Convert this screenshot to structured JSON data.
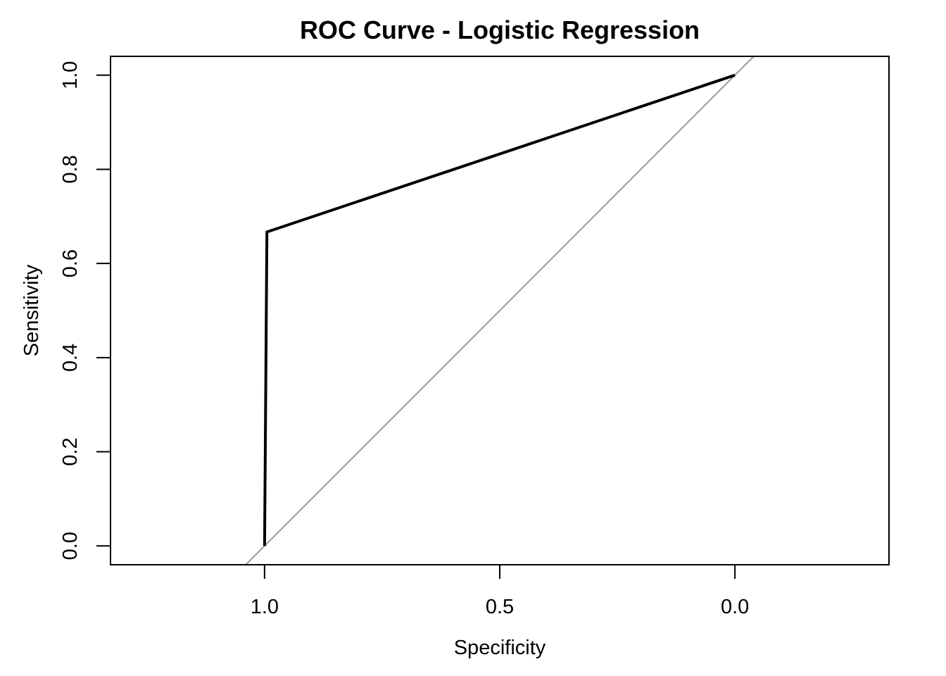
{
  "chart_data": {
    "type": "line",
    "title": "ROC Curve - Logistic Regression",
    "xlabel": "Specificity",
    "ylabel": "Sensitivity",
    "x_reversed": true,
    "xlim": [
      1.3275,
      -0.3275
    ],
    "ylim": [
      -0.04,
      1.04
    ],
    "x_ticks": [
      1.0,
      0.5,
      0.0
    ],
    "x_tick_labels": [
      "1.0",
      "0.5",
      "0.0"
    ],
    "y_ticks": [
      0.0,
      0.2,
      0.4,
      0.6,
      0.8,
      1.0
    ],
    "y_tick_labels": [
      "0.0",
      "0.2",
      "0.4",
      "0.6",
      "0.8",
      "1.0"
    ],
    "grid": false,
    "series": [
      {
        "x": [
          1.0,
          0.995,
          0.0
        ],
        "y": [
          0.0,
          0.667,
          1.0
        ],
        "color": "#000000"
      }
    ],
    "reference_line": {
      "intercept": 1,
      "slope": -1,
      "color": "#999999"
    }
  }
}
